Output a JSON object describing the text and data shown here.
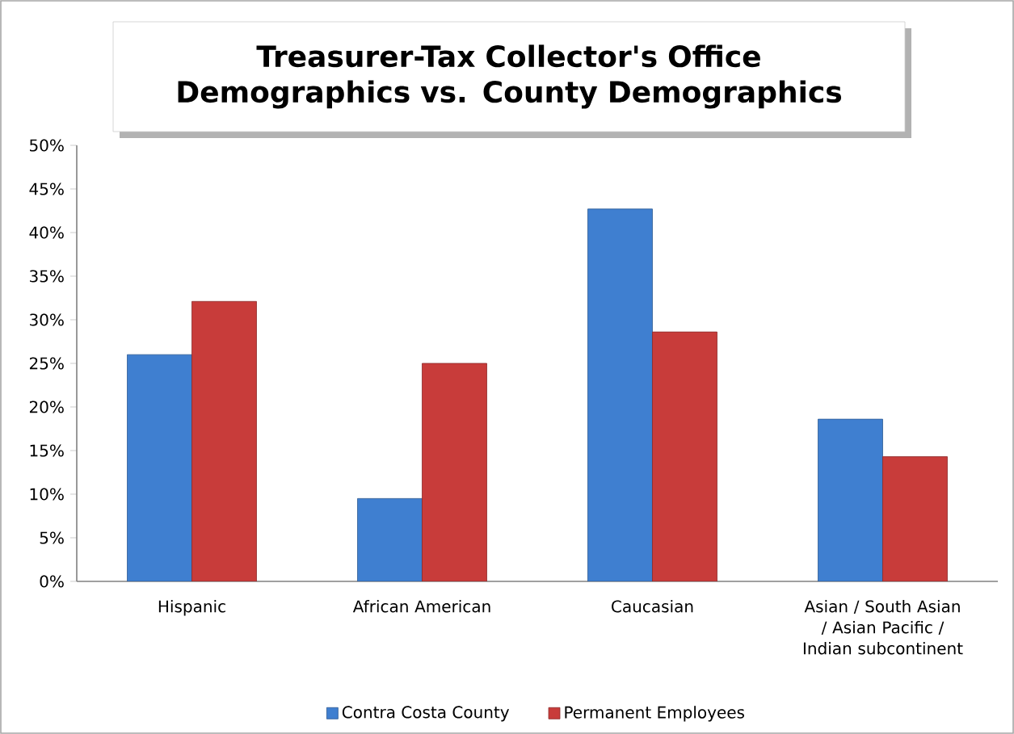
{
  "chart_data": {
    "type": "bar",
    "title": "Treasurer-Tax Collector's Office Demographics vs. County Demographics",
    "categories": [
      "Hispanic",
      "African American",
      "Caucasian",
      "Asian / South Asian / Asian Pacific / Indian subcontinent"
    ],
    "series": [
      {
        "name": "Contra Costa County",
        "color": "#3f7fd0",
        "values": [
          26.0,
          9.5,
          42.7,
          18.6
        ]
      },
      {
        "name": "Permanent Employees",
        "color": "#c83c3a",
        "values": [
          32.1,
          25.0,
          28.6,
          14.3
        ]
      }
    ],
    "ylim": [
      0,
      50
    ],
    "yticks": [
      {
        "value": 0,
        "label": "0%"
      },
      {
        "value": 5,
        "label": "5%"
      },
      {
        "value": 10,
        "label": "10%"
      },
      {
        "value": 15,
        "label": "15%"
      },
      {
        "value": 20,
        "label": "20%"
      },
      {
        "value": 25,
        "label": "25%"
      },
      {
        "value": 30,
        "label": "30%"
      },
      {
        "value": 35,
        "label": "35%"
      },
      {
        "value": 40,
        "label": "40%"
      },
      {
        "value": 45,
        "label": "45%"
      },
      {
        "value": 50,
        "label": "50%"
      }
    ],
    "grid": false,
    "legend": "bottom"
  }
}
